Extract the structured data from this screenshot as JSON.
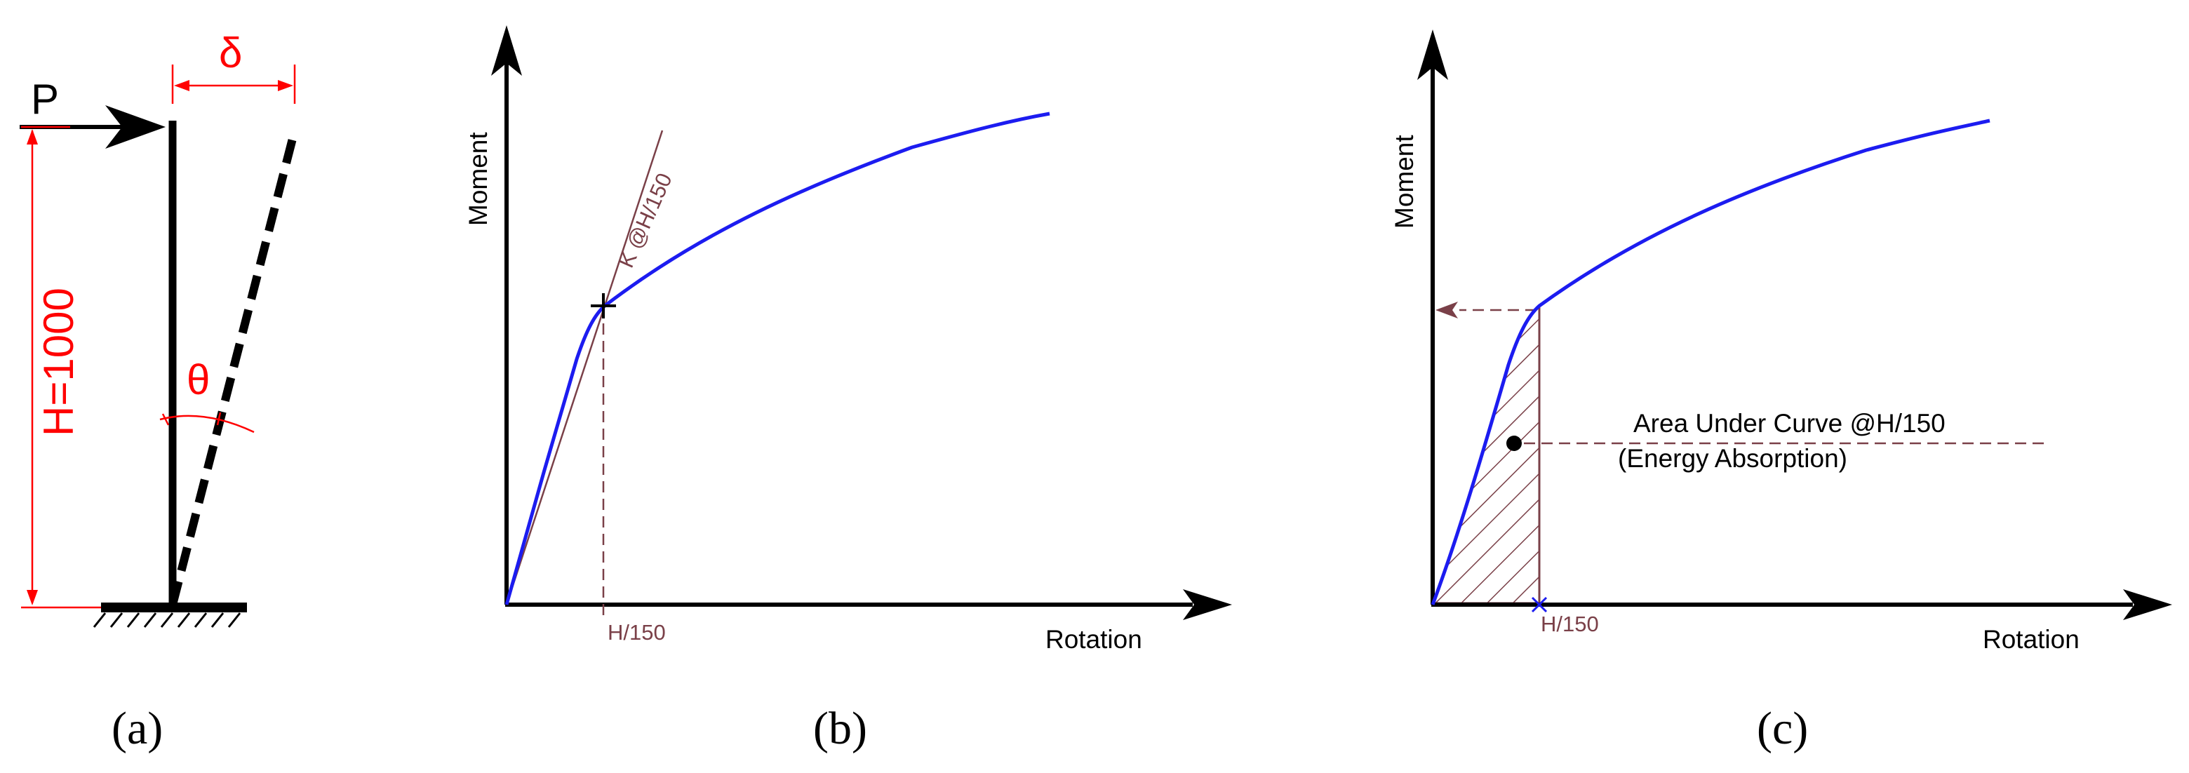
{
  "colors": {
    "annotation": "#ff0000",
    "curve": "#1c1cf0",
    "guide": "#7a4048",
    "ink": "#000000"
  },
  "panel_a": {
    "label": "(a)",
    "load_label": "P",
    "deflection_label": "δ",
    "angle_label": "θ",
    "height_label": "H=1000"
  },
  "panel_b": {
    "label": "(b)",
    "y_axis_label": "Moment",
    "x_axis_label": "Rotation",
    "secant_label": "K @H/150",
    "drift_label": "H/150"
  },
  "panel_c": {
    "label": "(c)",
    "y_axis_label": "Moment",
    "x_axis_label": "Rotation",
    "area_label": "Area Under Curve @H/150",
    "energy_label": "(Energy Absorption)",
    "drift_label": "H/150"
  }
}
